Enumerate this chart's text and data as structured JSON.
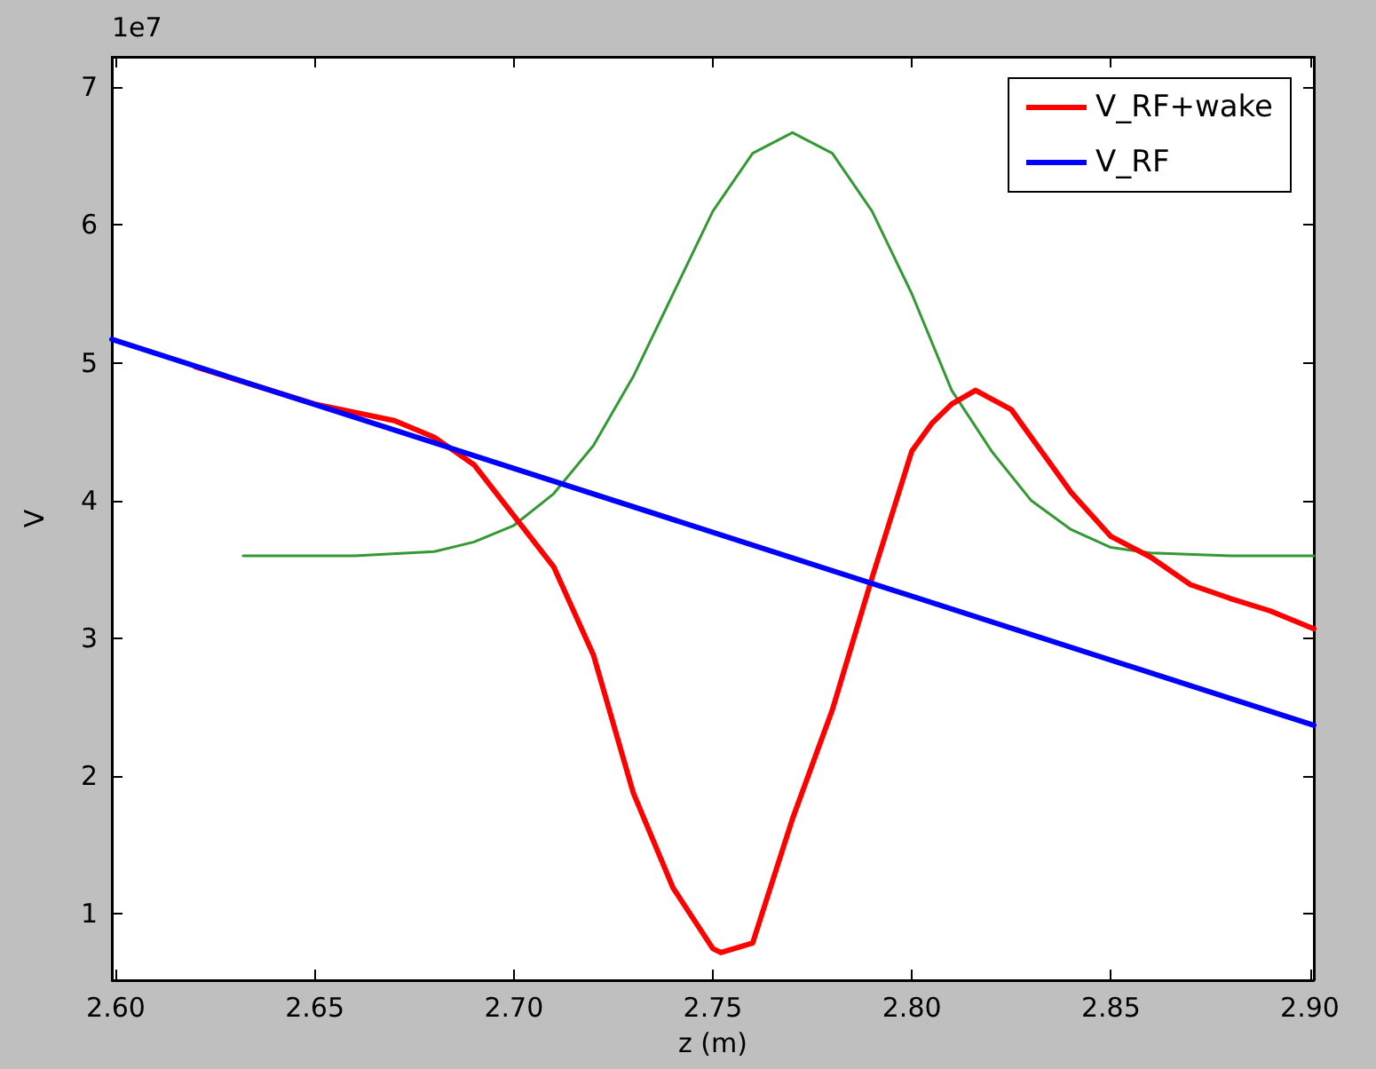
{
  "chart_data": {
    "type": "line",
    "xlabel": "z (m)",
    "ylabel": "V",
    "annotations": [
      "1e7"
    ],
    "xlim": [
      2.599,
      2.901
    ],
    "ylim": [
      0.52,
      7.22
    ],
    "xticks": [
      {
        "value": 2.6,
        "label": "2.60"
      },
      {
        "value": 2.65,
        "label": "2.65"
      },
      {
        "value": 2.7,
        "label": "2.70"
      },
      {
        "value": 2.75,
        "label": "2.75"
      },
      {
        "value": 2.8,
        "label": "2.80"
      },
      {
        "value": 2.85,
        "label": "2.85"
      },
      {
        "value": 2.9,
        "label": "2.90"
      }
    ],
    "yticks": [
      1,
      2,
      3,
      4,
      5,
      6,
      7
    ],
    "grid": false,
    "legend": "top right",
    "marker": "none",
    "line_style": "solid",
    "series": [
      {
        "name": "V_RF+wake",
        "color": "#ff0000",
        "x": [
          2.62,
          2.65,
          2.67,
          2.68,
          2.69,
          2.7,
          2.71,
          2.72,
          2.73,
          2.74,
          2.75,
          2.752,
          2.76,
          2.77,
          2.78,
          2.79,
          2.8,
          2.805,
          2.81,
          2.816,
          2.825,
          2.83,
          2.84,
          2.85,
          2.86,
          2.87,
          2.88,
          2.89,
          2.901
        ],
        "values": [
          4.97,
          4.7,
          4.58,
          4.46,
          4.26,
          3.89,
          3.52,
          2.88,
          1.88,
          1.19,
          0.75,
          0.72,
          0.79,
          1.69,
          2.48,
          3.44,
          4.36,
          4.56,
          4.7,
          4.8,
          4.66,
          4.46,
          4.06,
          3.74,
          3.59,
          3.39,
          3.29,
          3.2,
          3.07
        ]
      },
      {
        "name": "V_RF",
        "color": "#0000ff",
        "x": [
          2.599,
          2.901
        ],
        "values": [
          5.17,
          2.37
        ]
      },
      {
        "color": "#339933",
        "x": [
          2.632,
          2.66,
          2.68,
          2.69,
          2.7,
          2.71,
          2.72,
          2.73,
          2.74,
          2.75,
          2.76,
          2.77,
          2.78,
          2.79,
          2.8,
          2.81,
          2.82,
          2.83,
          2.84,
          2.85,
          2.86,
          2.88,
          2.901
        ],
        "values": [
          3.6,
          3.6,
          3.63,
          3.7,
          3.82,
          4.05,
          4.4,
          4.9,
          5.5,
          6.1,
          6.52,
          6.67,
          6.52,
          6.1,
          5.5,
          4.8,
          4.36,
          4.0,
          3.79,
          3.66,
          3.62,
          3.6,
          3.6
        ]
      }
    ]
  }
}
